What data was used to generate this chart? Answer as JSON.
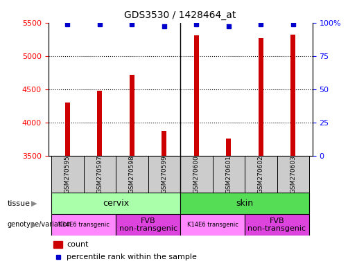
{
  "title": "GDS3530 / 1428464_at",
  "samples": [
    "GSM270595",
    "GSM270597",
    "GSM270598",
    "GSM270599",
    "GSM270600",
    "GSM270601",
    "GSM270602",
    "GSM270603"
  ],
  "counts": [
    4300,
    4480,
    4720,
    3870,
    5310,
    3760,
    5270,
    5320
  ],
  "percentile_ranks": [
    99,
    99,
    99,
    97,
    99,
    97,
    99,
    99
  ],
  "ylim_left": [
    3500,
    5500
  ],
  "ylim_right": [
    0,
    100
  ],
  "yticks_left": [
    3500,
    4000,
    4500,
    5000,
    5500
  ],
  "yticks_right": [
    0,
    25,
    50,
    75,
    100
  ],
  "ytick_right_labels": [
    "0",
    "25",
    "50",
    "75",
    "100%"
  ],
  "bar_color": "#cc0000",
  "scatter_color": "#0000cc",
  "bar_width": 0.15,
  "tissue_cervix_color": "#aaffaa",
  "tissue_skin_color": "#55dd55",
  "geno_k14_color": "#ff88ff",
  "geno_fvb_color": "#dd44dd",
  "xtick_bg_color": "#cccccc",
  "legend_count_label": "count",
  "legend_pct_label": "percentile rank within the sample",
  "tissue_row_label": "tissue",
  "genotype_row_label": "genotype/variation",
  "background_color": "#ffffff"
}
